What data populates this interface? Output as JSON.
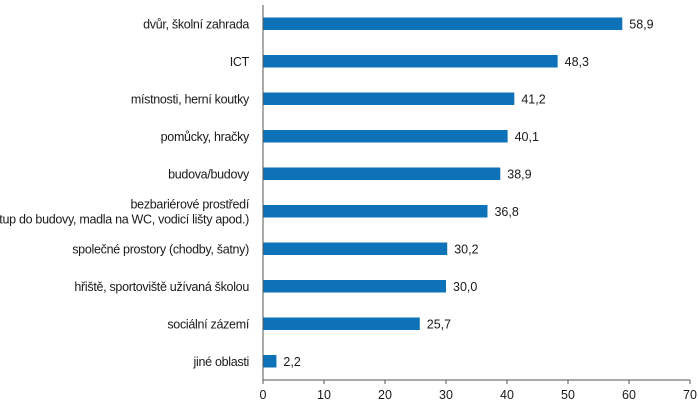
{
  "chart_data": {
    "type": "bar",
    "orientation": "horizontal",
    "categories": [
      [
        "dvůr, školní zahrada"
      ],
      [
        "ICT"
      ],
      [
        "místnosti, herní koutky"
      ],
      [
        "pomůcky, hračky"
      ],
      [
        "budova/budovy"
      ],
      [
        "bezbariérové prostředí",
        "(přístup do budovy, madla na WC, vodicí lišty apod.)"
      ],
      [
        "společné prostory (chodby, šatny)"
      ],
      [
        "hřiště, sportoviště užívaná školou"
      ],
      [
        "sociální zázemí"
      ],
      [
        "jiné oblasti"
      ]
    ],
    "values": [
      58.9,
      48.3,
      41.2,
      40.1,
      38.9,
      36.8,
      30.2,
      30.0,
      25.7,
      2.2
    ],
    "value_labels": [
      "58,9",
      "48,3",
      "41,2",
      "40,1",
      "38,9",
      "36,8",
      "30,2",
      "30,0",
      "25,7",
      "2,2"
    ],
    "xlim": [
      0,
      70
    ],
    "xticks": [
      0,
      10,
      20,
      30,
      40,
      50,
      60,
      70
    ],
    "bar_color": "#0e72b8",
    "grid": false,
    "title": "",
    "xlabel": "",
    "ylabel": ""
  }
}
